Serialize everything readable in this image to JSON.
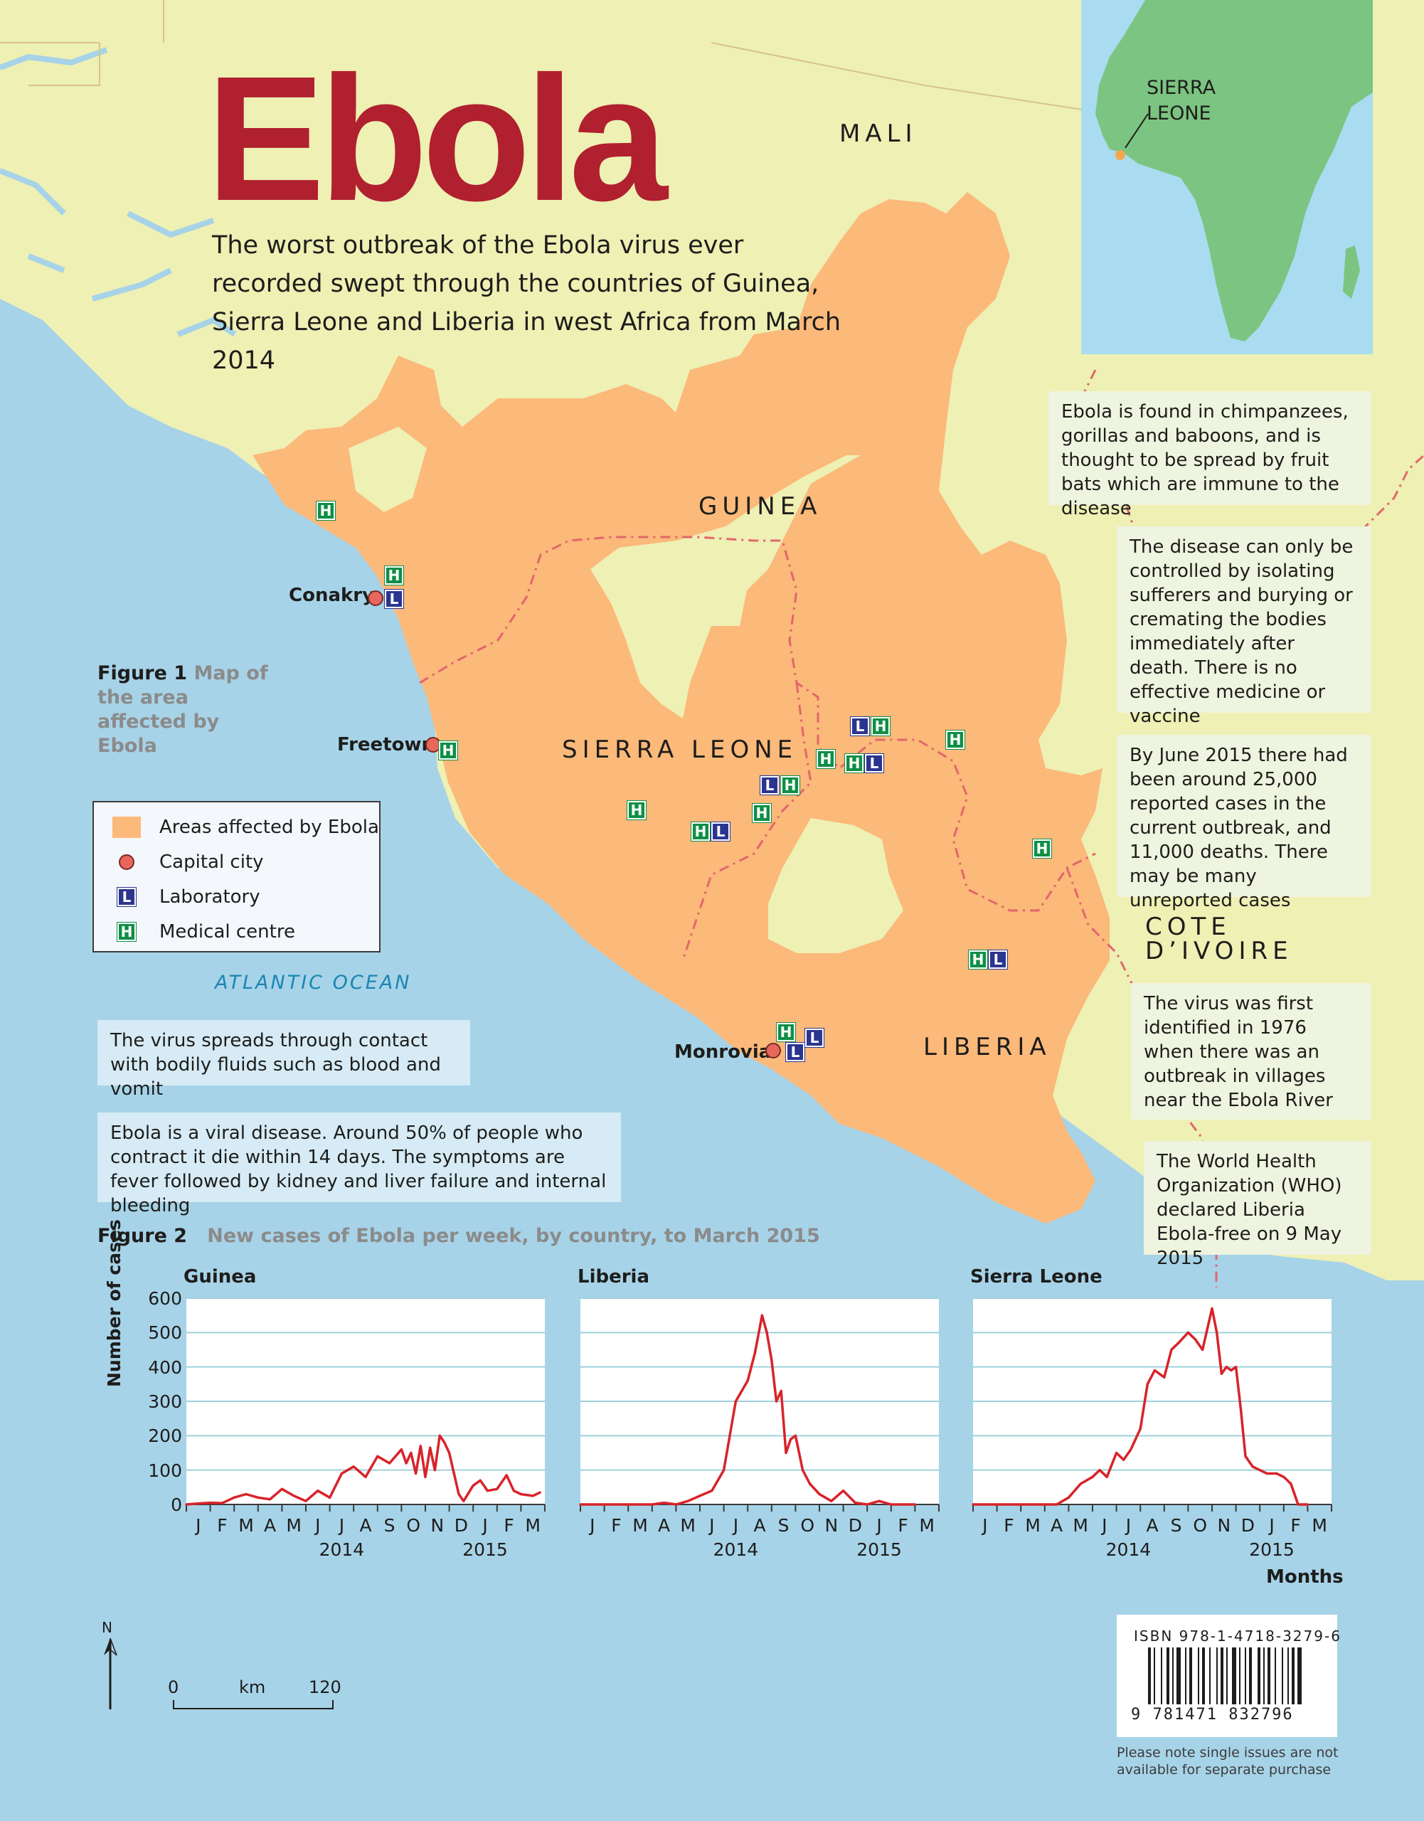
{
  "title": "Ebola",
  "intro": "The worst outbreak of the Ebola virus ever recorded swept through the countries of Guinea, Sierra Leone and Liberia in west Africa from March 2014",
  "countries": {
    "mali": "MALI",
    "guinea": "GUINEA",
    "sierra_leone": "SIERRA LEONE",
    "liberia": "LIBERIA",
    "cote_divoire_1": "COTE",
    "cote_divoire_2": "D’IVOIRE"
  },
  "capitals": {
    "conakry": "Conakry",
    "freetown": "Freetown",
    "monrovia": "Monrovia"
  },
  "ocean": "ATLANTIC OCEAN",
  "inset": {
    "label_1": "SIERRA",
    "label_2": "LEONE"
  },
  "figure1": {
    "number": "Figure 1",
    "caption": "Map of the area affected by Ebola"
  },
  "legend": {
    "items": [
      {
        "label": "Areas affected by Ebola",
        "symbol": "area-swatch"
      },
      {
        "label": "Capital city",
        "symbol": "capital-dot",
        "letter": ""
      },
      {
        "label": "Laboratory",
        "symbol": "laboratory-icon",
        "letter": "L"
      },
      {
        "label": "Medical centre",
        "symbol": "medical-centre-icon",
        "letter": "H"
      }
    ]
  },
  "facts": {
    "animals": "Ebola is found in chimpanzees, gorillas and baboons, and is thought to be spread by fruit bats which are immune to the disease",
    "control": "The disease can only be controlled by isolating sufferers and burying or cremating the bodies immediately after death. There is no effective medicine or vaccine",
    "cases": "By June 2015 there had been around 25,000 reported cases in the current outbreak, and 11,000 deaths. There may be many unreported cases",
    "first": "The virus was first identified in 1976 when there was an outbreak in villages near the Ebola River",
    "who": "The World Health Organization (WHO) declared Liberia Ebola-free on 9 May 2015",
    "spread": "The virus spreads through contact with bodily fluids such as blood and vomit",
    "disease": "Ebola is a viral disease. Around 50% of people who contract it die within 14 days. The symptoms are fever followed by kidney and liver failure and internal bleeding"
  },
  "figure2": {
    "number": "Figure 2",
    "caption": "New cases of Ebola per week, by country, to March 2015"
  },
  "scale": {
    "zero": "0",
    "unit": "km",
    "max": "120"
  },
  "compass": "N",
  "isbn": {
    "label": "ISBN  978-1-4718-3279-6",
    "digits": "9 781471 832796"
  },
  "note": "Please note single issues are not available for separate purchase",
  "colors": {
    "sea": "#a7d3e8",
    "land": "#eef0b4",
    "affected": "#fbb97a",
    "title": "#b0202f",
    "line": "#d8232a",
    "laboratory": "#2b3590",
    "medical_centre": "#0f8f45"
  },
  "chart_data": [
    {
      "type": "line",
      "title": "Guinea",
      "ylabel": "Number of cases",
      "xlabel": "Months",
      "ylim": [
        0,
        600
      ],
      "yticks": [
        0,
        100,
        200,
        300,
        400,
        500,
        600
      ],
      "month_ticks": [
        "J",
        "F",
        "M",
        "A",
        "M",
        "J",
        "J",
        "A",
        "S",
        "O",
        "N",
        "D",
        "J",
        "F",
        "M"
      ],
      "year_labels": [
        "2014",
        "2015"
      ],
      "x": [
        0,
        0.5,
        1,
        1.5,
        2,
        2.5,
        3,
        3.5,
        4,
        4.5,
        5,
        5.5,
        6,
        6.5,
        7,
        7.5,
        8,
        8.5,
        9,
        9.2,
        9.4,
        9.6,
        9.8,
        10,
        10.2,
        10.4,
        10.6,
        10.8,
        11,
        11.2,
        11.4,
        11.6,
        12,
        12.3,
        12.6,
        13,
        13.4,
        13.7,
        14,
        14.5,
        14.8
      ],
      "values": [
        0,
        3,
        5,
        4,
        20,
        30,
        20,
        15,
        45,
        25,
        10,
        40,
        20,
        90,
        110,
        80,
        140,
        120,
        160,
        120,
        150,
        90,
        170,
        80,
        165,
        100,
        200,
        180,
        150,
        90,
        30,
        10,
        55,
        70,
        40,
        45,
        85,
        40,
        30,
        25,
        35
      ]
    },
    {
      "type": "line",
      "title": "Liberia",
      "ylim": [
        0,
        600
      ],
      "month_ticks": [
        "J",
        "F",
        "M",
        "A",
        "M",
        "J",
        "J",
        "A",
        "S",
        "O",
        "N",
        "D",
        "J",
        "F",
        "M"
      ],
      "year_labels": [
        "2014",
        "2015"
      ],
      "x": [
        0,
        1,
        2,
        3,
        3.5,
        4,
        4.5,
        5,
        5.5,
        6,
        6.5,
        7,
        7.3,
        7.6,
        7.8,
        8,
        8.2,
        8.4,
        8.6,
        8.8,
        9,
        9.3,
        9.6,
        10,
        10.5,
        11,
        11.5,
        12,
        12.5,
        13,
        13.5,
        14
      ],
      "values": [
        0,
        0,
        0,
        0,
        5,
        0,
        10,
        25,
        40,
        100,
        300,
        360,
        440,
        550,
        500,
        420,
        300,
        330,
        150,
        190,
        200,
        100,
        60,
        30,
        10,
        40,
        5,
        0,
        10,
        0,
        0,
        0
      ]
    },
    {
      "type": "line",
      "title": "Sierra Leone",
      "ylim": [
        0,
        600
      ],
      "month_ticks": [
        "J",
        "F",
        "M",
        "A",
        "M",
        "J",
        "J",
        "A",
        "S",
        "O",
        "N",
        "D",
        "J",
        "F",
        "M"
      ],
      "year_labels": [
        "2014",
        "2015"
      ],
      "x": [
        0,
        1,
        2,
        3,
        3.5,
        4,
        4.5,
        5,
        5.3,
        5.6,
        6,
        6.3,
        6.6,
        7,
        7.3,
        7.6,
        8,
        8.3,
        8.6,
        9,
        9.3,
        9.6,
        10,
        10.2,
        10.4,
        10.6,
        10.8,
        11,
        11.2,
        11.4,
        11.7,
        12,
        12.3,
        12.7,
        13,
        13.3,
        13.6,
        14
      ],
      "values": [
        0,
        0,
        0,
        0,
        0,
        20,
        60,
        80,
        100,
        80,
        150,
        130,
        160,
        220,
        350,
        390,
        370,
        450,
        470,
        500,
        480,
        450,
        570,
        500,
        380,
        400,
        390,
        400,
        280,
        140,
        110,
        100,
        90,
        90,
        80,
        60,
        0,
        0
      ]
    }
  ]
}
